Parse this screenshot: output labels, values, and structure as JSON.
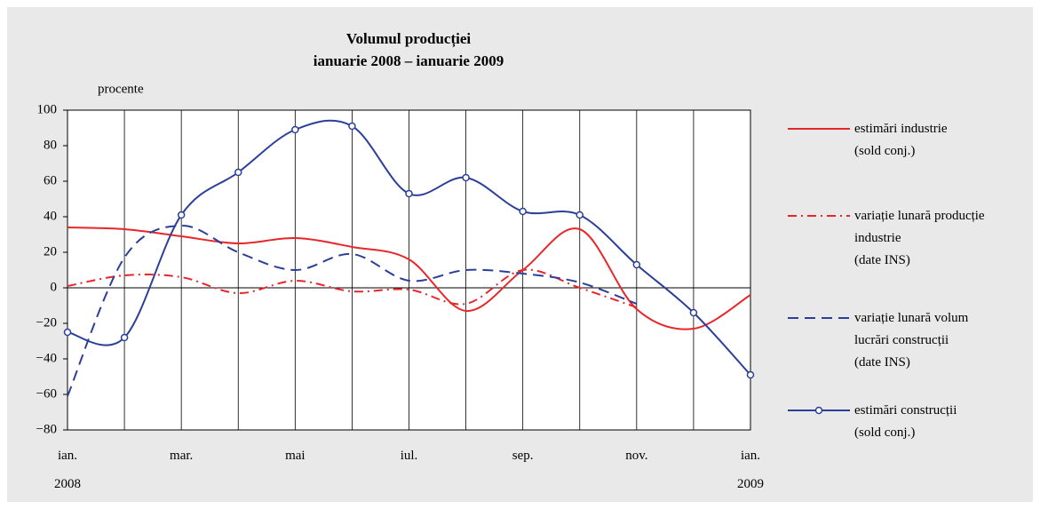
{
  "chart_data": {
    "type": "line",
    "title": "Volumul producției",
    "subtitle": "ianuarie 2008 – ianuarie 2009",
    "y_label": "procente",
    "categories": [
      "ian.\n2008",
      null,
      "mar.",
      null,
      "mai",
      null,
      "iul.",
      null,
      "sep.",
      null,
      "nov.",
      null,
      "ian.\n2009"
    ],
    "series": [
      {
        "name": "estimări industrie\n(sold conj.)",
        "color": "#e8262a",
        "style": "solid",
        "marker": false,
        "values": [
          34,
          33,
          29,
          25,
          28,
          23,
          16,
          -13,
          10,
          33,
          -12,
          -23,
          -4
        ]
      },
      {
        "name": "variație lunară producție\nindustrie\n(date INS)",
        "color": "#e8262a",
        "style": "dashdot",
        "marker": false,
        "values": [
          1,
          7,
          6,
          -3,
          4,
          -2,
          -1,
          -9,
          10,
          0,
          -11,
          null,
          null
        ]
      },
      {
        "name": "variație lunară volum\nlucrări construcții\n(date INS)",
        "color": "#2b3f9a",
        "style": "dashed",
        "marker": false,
        "values": [
          -61,
          17,
          35,
          20,
          10,
          19,
          4,
          10,
          8,
          3,
          -9,
          null,
          null
        ]
      },
      {
        "name": "estimări construcții\n(sold conj.)",
        "color": "#2b3f9a",
        "style": "solid",
        "marker": true,
        "values": [
          -25,
          -28,
          41,
          65,
          89,
          91,
          53,
          62,
          43,
          41,
          13,
          -14,
          -49
        ]
      }
    ],
    "ylim": [
      -80,
      100
    ],
    "yticks": [
      {
        "value": -80,
        "label": "−80"
      },
      {
        "value": -60,
        "label": "−60"
      },
      {
        "value": -40,
        "label": "−40"
      },
      {
        "value": -20,
        "label": "−20"
      },
      0,
      20,
      40,
      60,
      80,
      100
    ],
    "grid": "x",
    "legend": "right"
  }
}
